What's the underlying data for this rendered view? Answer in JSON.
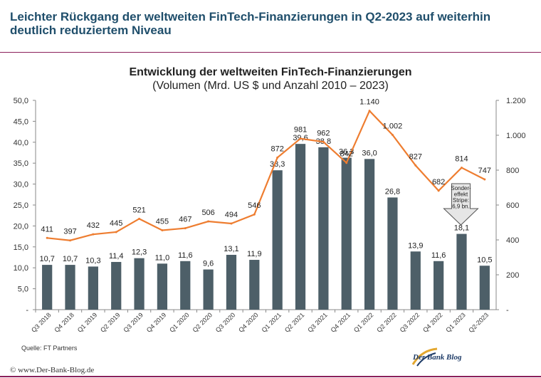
{
  "headline": "Leichter Rückgang der weltweiten FinTech-Finanzierungen in Q2-2023 auf weiterhin deutlich reduziertem Niveau",
  "source": "Quelle: FT Partners",
  "copyright": "www.Der-Bank-Blog.de",
  "copyright_symbol": "©",
  "brand": "Der Bank Blog",
  "chart_data": {
    "type": "bar",
    "title": "Entwicklung der weltweiten FinTech-Finanzierungen",
    "subtitle": "(Volumen (Mrd. US $ und Anzahl 2010 – 2023)",
    "categories": [
      "Q3 2018",
      "Q4 2018",
      "Q1 2019",
      "Q2 2019",
      "Q3 2019",
      "Q4 2019",
      "Q1 2020",
      "Q2 2020",
      "Q3 2020",
      "Q4 2020",
      "Q1 2021",
      "Q2 2021",
      "Q3 2021",
      "Q4 2021",
      "Q1 2022",
      "Q2 2022",
      "Q3 2022",
      "Q4 2022",
      "Q1 2023",
      "Q2-2023"
    ],
    "series": [
      {
        "axis": "left",
        "type": "bar",
        "color": "#4d5f68",
        "values": [
          10.7,
          10.7,
          10.3,
          11.4,
          12.3,
          11.0,
          11.6,
          9.6,
          13.1,
          11.9,
          33.3,
          39.6,
          38.8,
          36.3,
          36.0,
          26.8,
          13.9,
          11.6,
          18.1,
          10.5
        ],
        "labels": [
          "10,7",
          "10,7",
          "10,3",
          "11,4",
          "12,3",
          "11,0",
          "11,6",
          "9,6",
          "13,1",
          "11,9",
          "33,3",
          "39,6",
          "38,8",
          "36,3",
          "36,0",
          "26,8",
          "13,9",
          "11,6",
          "18,1",
          "10,5"
        ]
      },
      {
        "axis": "right",
        "type": "line",
        "color": "#ee7d30",
        "values": [
          411,
          397,
          432,
          445,
          521,
          455,
          467,
          506,
          494,
          546,
          872,
          981,
          962,
          842,
          1140,
          1002,
          827,
          682,
          814,
          747
        ],
        "labels": [
          "411",
          "397",
          "432",
          "445",
          "521",
          "455",
          "467",
          "506",
          "494",
          "546",
          "872",
          "981",
          "962",
          "842",
          "1.140",
          "1.002",
          "827",
          "682",
          "814",
          "747"
        ]
      }
    ],
    "y_left": {
      "ylim": [
        0,
        50
      ],
      "ticks": [
        "-",
        "5,0",
        "10,0",
        "15,0",
        "20,0",
        "25,0",
        "30,0",
        "35,0",
        "40,0",
        "45,0",
        "50,0"
      ]
    },
    "y_right": {
      "ylim": [
        0,
        1200
      ],
      "ticks": [
        "-",
        "200",
        "400",
        "600",
        "800",
        "1.000",
        "1.200"
      ]
    },
    "annotation": {
      "category_index": 18,
      "lines": [
        "Sonder-",
        "effekt",
        "Stripe:",
        "6,9 bn."
      ]
    }
  }
}
